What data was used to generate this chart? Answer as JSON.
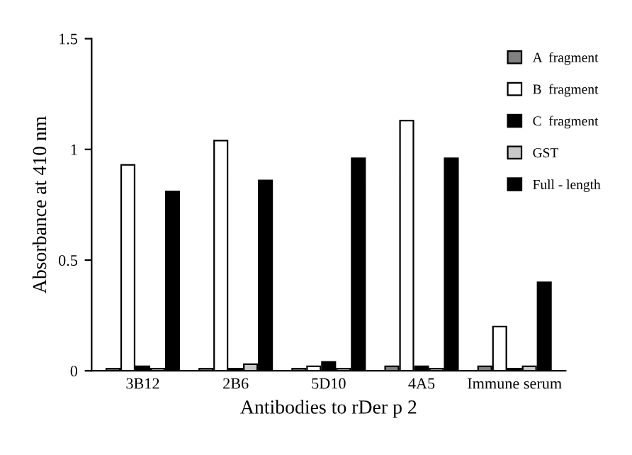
{
  "chart_data": {
    "type": "bar",
    "xlabel": "Antibodies to rDer p 2",
    "ylabel": "Absorbance at 410 nm",
    "categories": [
      "3B12",
      "2B6",
      "5D10",
      "4A5",
      "Immune serum"
    ],
    "series": [
      {
        "name": "A  fragment",
        "color": "#808080",
        "values": [
          0.01,
          0.01,
          0.01,
          0.02,
          0.02
        ]
      },
      {
        "name": "B  fragment",
        "color": "#ffffff",
        "values": [
          0.93,
          1.04,
          0.02,
          1.13,
          0.2
        ]
      },
      {
        "name": "C  fragment",
        "color": "#000000",
        "values": [
          0.02,
          0.01,
          0.04,
          0.02,
          0.01
        ]
      },
      {
        "name": "GST",
        "color": "#c8c8c8",
        "values": [
          0.01,
          0.03,
          0.01,
          0.01,
          0.02
        ]
      },
      {
        "name": "Full - length",
        "color": "#000000",
        "values": [
          0.81,
          0.86,
          0.96,
          0.96,
          0.4
        ]
      }
    ],
    "ylim": [
      0,
      1.5
    ],
    "yticks": [
      0,
      0.5,
      1,
      1.5
    ],
    "grid": false,
    "legend": "top right"
  }
}
